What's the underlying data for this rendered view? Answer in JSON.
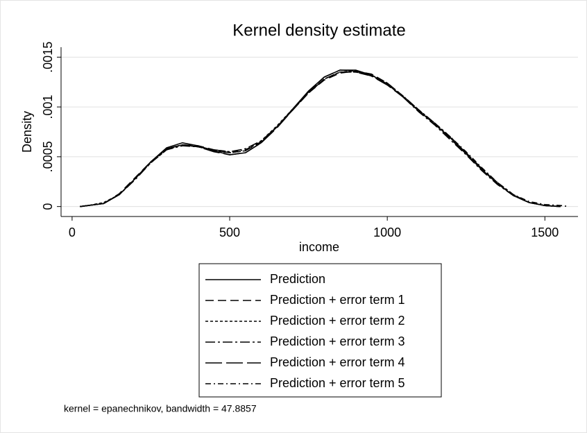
{
  "chart_data": {
    "type": "line",
    "title": "Kernel density estimate",
    "x_label": "income",
    "y_label": "Density",
    "note": "kernel = epanechnikov, bandwidth = 47.8857",
    "x": [
      25,
      50,
      100,
      150,
      200,
      250,
      300,
      350,
      400,
      450,
      500,
      550,
      600,
      650,
      700,
      750,
      800,
      850,
      900,
      950,
      1000,
      1050,
      1100,
      1150,
      1200,
      1250,
      1300,
      1350,
      1400,
      1450,
      1500,
      1550,
      1575
    ],
    "series": [
      {
        "name": "Prediction",
        "color": "#000000",
        "values": [
          0,
          1e-05,
          3e-05,
          0.00012,
          0.00028,
          0.00045,
          0.00059,
          0.00064,
          0.00061,
          0.00056,
          0.00052,
          0.00054,
          0.00064,
          0.0008,
          0.00098,
          0.00116,
          0.0013,
          0.00137,
          0.00137,
          0.00132,
          0.00123,
          0.0011,
          0.00096,
          0.00083,
          0.00069,
          0.00053,
          0.00037,
          0.00023,
          0.00011,
          4e-05,
          1e-05,
          0,
          null
        ]
      },
      {
        "name": "Prediction + error term 1",
        "color": "#000000",
        "dash": "12,6",
        "values": [
          0,
          1e-05,
          3e-05,
          0.00013,
          0.00029,
          0.00045,
          0.00058,
          0.00062,
          0.00061,
          0.00057,
          0.00054,
          0.00056,
          0.00065,
          0.0008,
          0.00097,
          0.00114,
          0.00127,
          0.00134,
          0.00136,
          0.00133,
          0.00124,
          0.00111,
          0.00097,
          0.00083,
          0.00068,
          0.00053,
          0.00037,
          0.00023,
          0.00011,
          4e-05,
          1e-05,
          0,
          null
        ]
      },
      {
        "name": "Prediction + error term 2",
        "color": "#000000",
        "dash": "4,3",
        "values": [
          0,
          1e-05,
          4e-05,
          0.00012,
          0.00028,
          0.00044,
          0.00057,
          0.00062,
          0.0006,
          0.00056,
          0.00054,
          0.00056,
          0.00066,
          0.00081,
          0.00098,
          0.00115,
          0.00128,
          0.00135,
          0.00136,
          0.00132,
          0.00124,
          0.00111,
          0.00097,
          0.00084,
          0.0007,
          0.00054,
          0.00038,
          0.00024,
          0.00012,
          4e-05,
          1e-05,
          0,
          null
        ]
      },
      {
        "name": "Prediction + error term 3",
        "color": "#000000",
        "dash": "14,4,3,4",
        "values": [
          0,
          1e-05,
          3e-05,
          0.00012,
          0.00027,
          0.00044,
          0.00057,
          0.00061,
          0.0006,
          0.00057,
          0.00055,
          0.00058,
          0.00066,
          0.0008,
          0.00097,
          0.00114,
          0.00128,
          0.00135,
          0.00135,
          0.00131,
          0.00123,
          0.0011,
          0.00095,
          0.00082,
          0.00067,
          0.00052,
          0.00036,
          0.00022,
          0.00011,
          4e-05,
          1e-05,
          0,
          null
        ]
      },
      {
        "name": "Prediction + error term 4",
        "color": "#000000",
        "dash": "24,6",
        "values": [
          0,
          1e-05,
          3e-05,
          0.00012,
          0.00028,
          0.00045,
          0.00058,
          0.00062,
          0.0006,
          0.00055,
          0.00052,
          0.00054,
          0.00064,
          0.00079,
          0.00097,
          0.00115,
          0.0013,
          0.00137,
          0.00136,
          0.00131,
          0.00122,
          0.0011,
          0.00096,
          0.00083,
          0.00069,
          0.00054,
          0.00038,
          0.00023,
          0.00011,
          4e-05,
          1e-05,
          0,
          null
        ]
      },
      {
        "name": "Prediction + error term 5",
        "color": "#000000",
        "dash": "8,4,2,4",
        "values": [
          0,
          1e-05,
          3e-05,
          0.00012,
          0.00028,
          0.00045,
          0.00058,
          0.00062,
          0.0006,
          0.00057,
          0.00055,
          0.00057,
          0.00065,
          0.0008,
          0.00097,
          0.00114,
          0.00128,
          0.00135,
          0.00135,
          0.00132,
          0.00123,
          0.00111,
          0.00097,
          0.00084,
          0.0007,
          0.00055,
          0.00039,
          0.00024,
          0.00012,
          5e-05,
          2e-05,
          1e-05,
          0
        ]
      }
    ],
    "xlim": [
      -35,
      1605
    ],
    "ylim": [
      -0.0001,
      0.0016
    ],
    "xticks": [
      0,
      500,
      1000,
      1500
    ],
    "yticks": [
      0,
      {
        "value": 0.0005,
        "label": ".0005"
      },
      {
        "value": 0.001,
        "label": ".001"
      },
      {
        "value": 0.0015,
        "label": ".0015"
      }
    ],
    "grid": true,
    "legend": "bottom"
  }
}
